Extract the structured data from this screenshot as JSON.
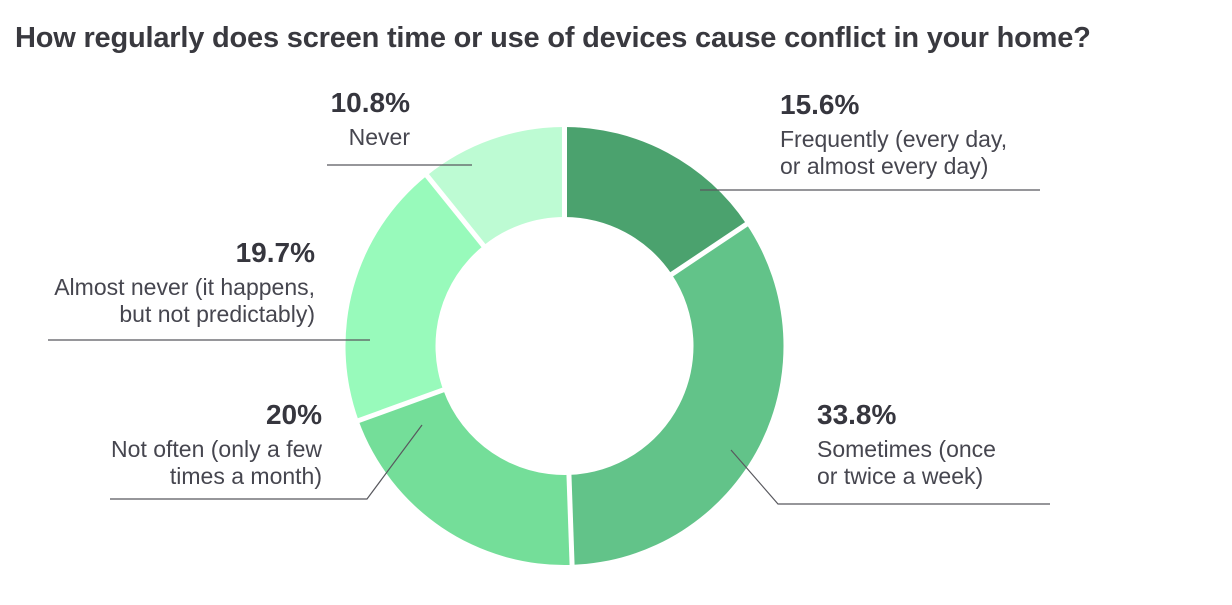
{
  "chart_data": {
    "type": "donut",
    "title": "How regularly does screen time or use of devices cause conflict in your home?",
    "start_angle_deg": 0,
    "direction": "clockwise",
    "legend_position": "callout-labels",
    "grid": false,
    "background_color": "#FFFFFF",
    "title_color": "#39393F",
    "percent_text_color": "#36363E",
    "label_text_color": "#46464F",
    "separator_color": "#FFFFFF",
    "leader_line_color": "#58585E",
    "segments": [
      {
        "name": "frequently",
        "pct_label": "15.6%",
        "value": 15.6,
        "label": "Frequently (every day, or almost every day)",
        "label_lines": [
          "Frequently (every day,",
          "or almost every day)"
        ],
        "color": "#4BA26E"
      },
      {
        "name": "sometimes",
        "pct_label": "33.8%",
        "value": 33.8,
        "label": "Sometimes (once or twice a week)",
        "label_lines": [
          "Sometimes (once",
          "or twice a week)"
        ],
        "color": "#62C389"
      },
      {
        "name": "not_often",
        "pct_label": "20%",
        "value": 20,
        "label": "Not often (only a few times a month)",
        "label_lines": [
          "Not often (only a few",
          "times a month)"
        ],
        "color": "#74DE99"
      },
      {
        "name": "almost_never",
        "pct_label": "19.7%",
        "value": 19.7,
        "label": "Almost never (it happens, but not predictably)",
        "label_lines": [
          "Almost never (it happens,",
          "but not predictably)"
        ],
        "color": "#98FABB"
      },
      {
        "name": "never",
        "pct_label": "10.8%",
        "value": 10.8,
        "label": "Never",
        "label_lines": [
          "Never"
        ],
        "color": "#BDFBD3"
      }
    ]
  }
}
